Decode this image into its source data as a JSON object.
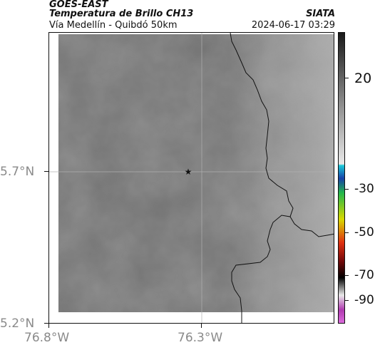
{
  "header": {
    "title_line1": "GOES-EAST",
    "title_line2": "Temperatura de Brillo CH13",
    "subtitle": "Vía Medellín - Quibdó 50km",
    "brand": "SIATA",
    "datetime": "2024-06-17 03:29"
  },
  "axes": {
    "y_ticks": [
      "5.7°N",
      "5.2°N"
    ],
    "x_ticks": [
      "76.8°W",
      "76.3°W"
    ]
  },
  "colorbar": {
    "labels": [
      "20",
      "-30",
      "-50",
      "-70",
      "-90"
    ]
  },
  "marker": {
    "symbol": "★",
    "name": "station-marker"
  }
}
